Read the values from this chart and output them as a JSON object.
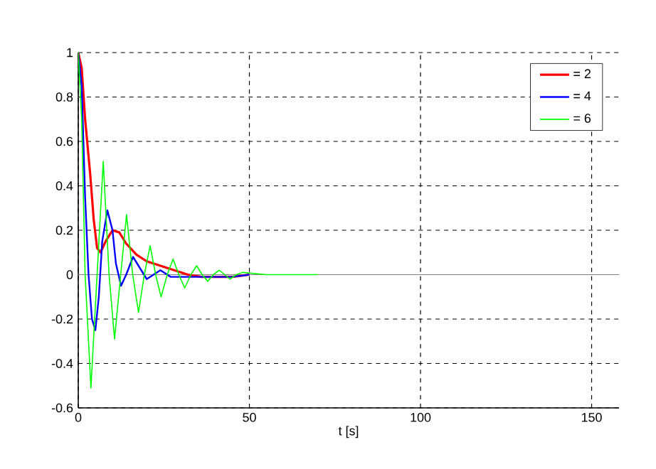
{
  "chart_data": {
    "type": "line",
    "xlabel": "t [s]",
    "xlim": [
      0,
      158
    ],
    "ylim": [
      -0.6,
      1
    ],
    "xticks": [
      0,
      50,
      100,
      150
    ],
    "yticks": [
      -0.6,
      -0.4,
      -0.2,
      0,
      0.2,
      0.4,
      0.6,
      0.8,
      1
    ],
    "grid": true,
    "legend": "top right",
    "marker": "none",
    "line_style": "solid",
    "ref_lines": [
      {
        "axis": "y",
        "value": 0,
        "color": "#808080"
      }
    ],
    "series": [
      {
        "name": "= 2",
        "color": "#ff0000",
        "x": [
          0,
          1,
          2,
          3.5,
          4.5,
          5.5,
          6.5,
          8,
          10,
          12,
          14,
          17,
          20,
          24,
          28,
          32,
          36,
          45,
          50
        ],
        "values": [
          1,
          0.93,
          0.7,
          0.45,
          0.25,
          0.12,
          0.1,
          0.15,
          0.2,
          0.19,
          0.14,
          0.09,
          0.06,
          0.04,
          0.02,
          0,
          -0.01,
          -0.01,
          0
        ]
      },
      {
        "name": "= 4",
        "color": "#0000ff",
        "x": [
          0,
          1,
          2,
          3,
          4,
          5,
          6,
          7,
          8.5,
          10,
          11,
          12.5,
          14,
          16,
          18,
          20,
          22,
          24,
          27,
          35,
          45,
          50
        ],
        "values": [
          1,
          0.85,
          0.35,
          0,
          -0.2,
          -0.25,
          -0.1,
          0.15,
          0.29,
          0.2,
          0.05,
          -0.05,
          0,
          0.08,
          0.03,
          -0.02,
          0,
          0.02,
          -0.01,
          -0.01,
          -0.01,
          0
        ]
      },
      {
        "name": "= 6",
        "color": "#00ff00",
        "x": [
          0,
          1,
          2,
          3.7,
          5.5,
          7.3,
          9,
          10.6,
          12.4,
          14.1,
          15.9,
          17.6,
          19.3,
          21,
          22.6,
          24.2,
          26,
          27.7,
          29.4,
          31.1,
          32.9,
          34.6,
          36.2,
          37.8,
          39.5,
          41.2,
          42.8,
          44.3,
          46.2,
          48,
          55,
          70
        ],
        "values": [
          1,
          0.7,
          0,
          -0.51,
          0,
          0.51,
          0,
          -0.29,
          0,
          0.27,
          0,
          -0.17,
          0,
          0.13,
          0,
          -0.1,
          0,
          0.07,
          0,
          -0.06,
          0,
          0.04,
          0,
          -0.03,
          0,
          0.02,
          0,
          -0.02,
          0,
          0.01,
          0,
          0
        ]
      }
    ]
  }
}
